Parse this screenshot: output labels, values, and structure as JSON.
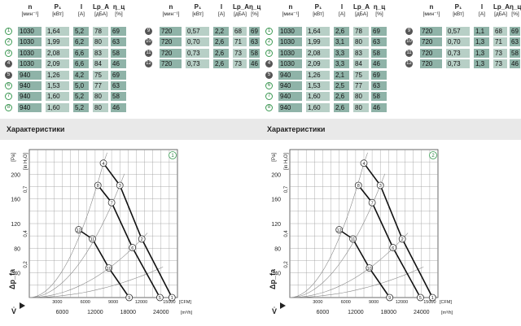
{
  "panels": [
    {
      "headers": [
        {
          "sym": "n",
          "unit": "[мин⁻¹]"
        },
        {
          "sym": "P₁",
          "unit": "[кВт]"
        },
        {
          "sym": "I",
          "unit": "[A]"
        },
        {
          "sym": "Lp_A",
          "unit": "[дБА]"
        },
        {
          "sym": "η_ц",
          "unit": "[%]"
        }
      ],
      "rows_left": [
        {
          "id": "1",
          "style": "outline",
          "vals": [
            "1030",
            "1,64",
            "5,2",
            "78",
            "69"
          ]
        },
        {
          "id": "2",
          "style": "outline",
          "vals": [
            "1030",
            "1,99",
            "6,2",
            "80",
            "63"
          ]
        },
        {
          "id": "3",
          "style": "outline",
          "vals": [
            "1030",
            "2,08",
            "6,6",
            "83",
            "58"
          ]
        },
        {
          "id": "4",
          "style": "filled",
          "vals": [
            "1030",
            "2,09",
            "6,6",
            "84",
            "46"
          ]
        },
        {
          "id": "5",
          "style": "filled",
          "vals": [
            "940",
            "1,26",
            "4,2",
            "75",
            "69"
          ]
        },
        {
          "id": "6",
          "style": "outline",
          "vals": [
            "940",
            "1,53",
            "5,0",
            "77",
            "63"
          ]
        },
        {
          "id": "7",
          "style": "outline",
          "vals": [
            "940",
            "1,60",
            "5,2",
            "80",
            "58"
          ]
        },
        {
          "id": "8",
          "style": "outline",
          "vals": [
            "940",
            "1,60",
            "5,2",
            "80",
            "46"
          ]
        }
      ],
      "rows_right": [
        {
          "id": "9",
          "style": "filled",
          "vals": [
            "720",
            "0,57",
            "2,2",
            "68",
            "69"
          ]
        },
        {
          "id": "10",
          "style": "filled",
          "vals": [
            "720",
            "0,70",
            "2,6",
            "71",
            "63"
          ]
        },
        {
          "id": "11",
          "style": "filled",
          "vals": [
            "720",
            "0,73",
            "2,6",
            "73",
            "58"
          ]
        },
        {
          "id": "12",
          "style": "filled",
          "vals": [
            "720",
            "0,73",
            "2,6",
            "73",
            "46"
          ]
        }
      ],
      "section_title": "Характеристики",
      "chart_badge": "1"
    },
    {
      "headers": [
        {
          "sym": "n",
          "unit": "[мин⁻¹]"
        },
        {
          "sym": "P₁",
          "unit": "[кВт]"
        },
        {
          "sym": "I",
          "unit": "[A]"
        },
        {
          "sym": "Lp_A",
          "unit": "[дБА]"
        },
        {
          "sym": "η_ц",
          "unit": "[%]"
        }
      ],
      "rows_left": [
        {
          "id": "1",
          "style": "outline",
          "vals": [
            "1030",
            "1,64",
            "2,6",
            "78",
            "69"
          ]
        },
        {
          "id": "2",
          "style": "outline",
          "vals": [
            "1030",
            "1,99",
            "3,1",
            "80",
            "63"
          ]
        },
        {
          "id": "3",
          "style": "outline",
          "vals": [
            "1030",
            "2,08",
            "3,3",
            "83",
            "58"
          ]
        },
        {
          "id": "4",
          "style": "filled",
          "vals": [
            "1030",
            "2,09",
            "3,3",
            "84",
            "46"
          ]
        },
        {
          "id": "5",
          "style": "filled",
          "vals": [
            "940",
            "1,26",
            "2,1",
            "75",
            "69"
          ]
        },
        {
          "id": "6",
          "style": "outline",
          "vals": [
            "940",
            "1,53",
            "2,5",
            "77",
            "63"
          ]
        },
        {
          "id": "7",
          "style": "outline",
          "vals": [
            "940",
            "1,60",
            "2,6",
            "80",
            "58"
          ]
        },
        {
          "id": "8",
          "style": "outline",
          "vals": [
            "940",
            "1,60",
            "2,6",
            "80",
            "46"
          ]
        }
      ],
      "rows_right": [
        {
          "id": "9",
          "style": "filled",
          "vals": [
            "720",
            "0,57",
            "1,1",
            "68",
            "69"
          ]
        },
        {
          "id": "10",
          "style": "filled",
          "vals": [
            "720",
            "0,70",
            "1,3",
            "71",
            "63"
          ]
        },
        {
          "id": "11",
          "style": "filled",
          "vals": [
            "720",
            "0,73",
            "1,3",
            "73",
            "58"
          ]
        },
        {
          "id": "12",
          "style": "filled",
          "vals": [
            "720",
            "0,73",
            "1,3",
            "73",
            "46"
          ]
        }
      ],
      "section_title": "Характеристики",
      "chart_badge": "2"
    }
  ],
  "chart_data": [
    {
      "type": "line",
      "ylabel_left": "Δp_fa",
      "yunit_left": "[Pa]",
      "ylabel_right": "p_f",
      "yunit_right": "[in H₂O]",
      "xlabel": "V̇",
      "xunit_top": "[CFM]",
      "xunit_bottom": "[m³/h]",
      "y_ticks": [
        40,
        80,
        120,
        160,
        200
      ],
      "y_right_ticks": [
        "0,2",
        "0,4",
        "0,7"
      ],
      "x_top_ticks": [
        "3000",
        "6000",
        "9000",
        "12000",
        "15000"
      ],
      "x_bottom_ticks": [
        "6000",
        "12000",
        "18000",
        "24000"
      ],
      "series": [
        {
          "id": "1030",
          "points": [
            [
              13500,
              218
            ],
            [
              16500,
              182
            ],
            [
              20500,
              95
            ],
            [
              26000,
              0
            ]
          ]
        },
        {
          "id": "940",
          "points": [
            [
              12500,
              182
            ],
            [
              15000,
              154
            ],
            [
              18800,
              81
            ],
            [
              23800,
              0
            ]
          ]
        },
        {
          "id": "720",
          "points": [
            [
              9000,
              110
            ],
            [
              11500,
              95
            ],
            [
              14500,
              48
            ],
            [
              18200,
              0
            ]
          ]
        }
      ],
      "point_labels": [
        "4",
        "3",
        "2",
        "1",
        "8",
        "7",
        "6",
        "5",
        "12",
        "11",
        "10",
        "9"
      ]
    },
    {
      "type": "line",
      "ylabel_left": "Δp_fa",
      "yunit_left": "[Pa]",
      "ylabel_right": "p_f",
      "yunit_right": "[in H₂O]",
      "xlabel": "V̇",
      "xunit_top": "[CFM]",
      "xunit_bottom": "[m³/h]",
      "y_ticks": [
        40,
        80,
        120,
        160,
        200
      ],
      "y_right_ticks": [
        "0,2",
        "0,4",
        "0,7"
      ],
      "x_top_ticks": [
        "3000",
        "6000",
        "9000",
        "12000",
        "15000"
      ],
      "x_bottom_ticks": [
        "6000",
        "12000",
        "18000",
        "24000"
      ],
      "series": [
        {
          "id": "1030",
          "points": [
            [
              13500,
              218
            ],
            [
              16500,
              182
            ],
            [
              20500,
              95
            ],
            [
              26000,
              0
            ]
          ]
        },
        {
          "id": "940",
          "points": [
            [
              12500,
              182
            ],
            [
              15000,
              154
            ],
            [
              18800,
              81
            ],
            [
              23800,
              0
            ]
          ]
        },
        {
          "id": "720",
          "points": [
            [
              9000,
              110
            ],
            [
              11500,
              95
            ],
            [
              14500,
              48
            ],
            [
              18200,
              0
            ]
          ]
        }
      ],
      "point_labels": [
        "4",
        "3",
        "2",
        "1",
        "8",
        "7",
        "6",
        "5",
        "12",
        "11",
        "10",
        "9"
      ]
    }
  ]
}
